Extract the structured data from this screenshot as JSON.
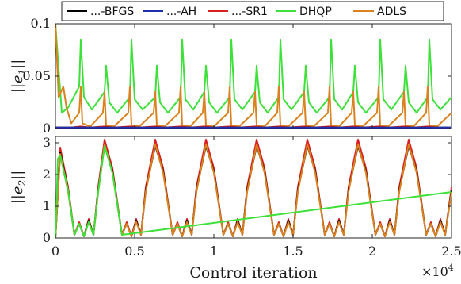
{
  "legend": {
    "entries": [
      {
        "label": "...-BFGS",
        "color": "#000000"
      },
      {
        "label": "...-AH",
        "color": "#1f2fb0"
      },
      {
        "label": "...-SR1",
        "color": "#d92020"
      },
      {
        "label": "DHQP",
        "color": "#3ee03a"
      },
      {
        "label": "ADLS",
        "color": "#d9821f"
      }
    ]
  },
  "x_axis": {
    "label": "Control iteration",
    "multiplier_base": "×10",
    "multiplier_exp": "4",
    "ticks": [
      "0",
      "0.5",
      "1",
      "1.5",
      "2",
      "2.5"
    ]
  },
  "chart_data": [
    {
      "type": "line",
      "panel": "top",
      "ylabel": "||e1||",
      "ylabel_base": "||e",
      "ylabel_sub": "1",
      "ylabel_end": "||",
      "xlim": [
        0,
        25000
      ],
      "ylim": [
        0,
        0.1
      ],
      "yticks": [
        "0",
        "0.05",
        "0.1"
      ],
      "grid": false,
      "series": [
        {
          "name": "DHQP",
          "description": "periodic spikes, period ~3100",
          "x": [
            0,
            400,
            800,
            1500,
            1600,
            1800,
            2300,
            3100,
            3200,
            3400,
            3900,
            4700,
            4800,
            5000,
            5500,
            6300,
            6400,
            6600,
            7100,
            7900,
            8000,
            8200,
            8700,
            9400,
            9500,
            9700,
            10200,
            11000,
            11100,
            11300,
            11800,
            12600,
            12700,
            12900,
            13400,
            14100,
            14200,
            14400,
            14900,
            15700,
            15800,
            16000,
            16500,
            17300,
            17400,
            17600,
            18100,
            18800,
            18900,
            19100,
            19600,
            20400,
            20500,
            20700,
            21200,
            22000,
            22100,
            22300,
            22800,
            23500,
            23600,
            23800,
            24300,
            25000
          ],
          "y": [
            0.1,
            0.015,
            0.02,
            0.04,
            0.085,
            0.03,
            0.018,
            0.035,
            0.06,
            0.025,
            0.015,
            0.03,
            0.085,
            0.028,
            0.018,
            0.03,
            0.06,
            0.025,
            0.015,
            0.03,
            0.085,
            0.028,
            0.018,
            0.035,
            0.06,
            0.025,
            0.015,
            0.03,
            0.085,
            0.028,
            0.018,
            0.035,
            0.06,
            0.025,
            0.015,
            0.03,
            0.085,
            0.028,
            0.018,
            0.035,
            0.06,
            0.025,
            0.015,
            0.03,
            0.085,
            0.028,
            0.018,
            0.035,
            0.06,
            0.025,
            0.015,
            0.03,
            0.085,
            0.028,
            0.018,
            0.035,
            0.06,
            0.025,
            0.015,
            0.03,
            0.085,
            0.028,
            0.018,
            0.03
          ]
        },
        {
          "name": "ADLS",
          "description": "small periodic ramps with spikes",
          "x": [
            0,
            200,
            500,
            700,
            1000,
            1500,
            1600,
            1700,
            2200,
            3000,
            3100,
            3200,
            3700,
            4600,
            4700,
            4800,
            5300,
            6200,
            6300,
            6400,
            6900,
            7800,
            7900,
            8000,
            8500,
            9300,
            9400,
            9500,
            10000,
            10900,
            11000,
            11100,
            11600,
            12500,
            12600,
            12700,
            13200,
            14000,
            14100,
            14200,
            14700,
            15600,
            15700,
            15800,
            16300,
            17200,
            17300,
            17400,
            17900,
            18700,
            18800,
            18900,
            19400,
            20300,
            20400,
            20500,
            21000,
            21900,
            22000,
            22100,
            22600,
            23400,
            23500,
            23600,
            24100,
            25000
          ],
          "y": [
            0.1,
            0.03,
            0.04,
            0.02,
            0.005,
            0.015,
            0.04,
            0.005,
            0.002,
            0.015,
            0.035,
            0.003,
            0.002,
            0.015,
            0.04,
            0.003,
            0.002,
            0.015,
            0.035,
            0.003,
            0.002,
            0.015,
            0.04,
            0.003,
            0.002,
            0.015,
            0.035,
            0.003,
            0.002,
            0.015,
            0.04,
            0.003,
            0.002,
            0.015,
            0.035,
            0.003,
            0.002,
            0.015,
            0.04,
            0.003,
            0.002,
            0.015,
            0.035,
            0.003,
            0.002,
            0.015,
            0.04,
            0.003,
            0.002,
            0.015,
            0.035,
            0.003,
            0.002,
            0.015,
            0.04,
            0.003,
            0.002,
            0.015,
            0.035,
            0.003,
            0.002,
            0.015,
            0.04,
            0.003,
            0.002,
            0.015
          ]
        },
        {
          "name": "...-SR1",
          "x": [
            0,
            1000,
            1600,
            2200,
            3100,
            3700,
            4700,
            5300,
            6300,
            6900,
            7900,
            8500,
            9400,
            10000,
            11000,
            11600,
            12600,
            13200,
            14100,
            14700,
            15700,
            16300,
            17300,
            17900,
            18800,
            19400,
            20400,
            21000,
            22000,
            22600,
            23500,
            24100,
            25000
          ],
          "y": [
            0.001,
            0.001,
            0.002,
            0.001,
            0.002,
            0.001,
            0.002,
            0.001,
            0.002,
            0.001,
            0.002,
            0.001,
            0.002,
            0.001,
            0.002,
            0.001,
            0.002,
            0.001,
            0.002,
            0.001,
            0.002,
            0.001,
            0.002,
            0.001,
            0.002,
            0.001,
            0.002,
            0.001,
            0.002,
            0.001,
            0.002,
            0.001,
            0.001
          ]
        },
        {
          "name": "...-BFGS",
          "x": [
            0,
            25000
          ],
          "y": [
            0.001,
            0.001
          ]
        },
        {
          "name": "...-AH",
          "x": [
            0,
            25000
          ],
          "y": [
            0.001,
            0.001
          ]
        }
      ]
    },
    {
      "type": "line",
      "panel": "bottom",
      "ylabel": "||e2||",
      "ylabel_base": "||e",
      "ylabel_sub": "2",
      "ylabel_end": "||",
      "xlim": [
        0,
        25000
      ],
      "ylim": [
        0,
        3.2
      ],
      "yticks": [
        "0",
        "1",
        "2",
        "3"
      ],
      "grid": false,
      "series": [
        {
          "name": "...-SR1",
          "x": [
            0,
            300,
            800,
            1200,
            1500,
            1800,
            2100,
            2400,
            2700,
            3100,
            3600,
            4200,
            4500,
            4800,
            5100,
            5400,
            5700,
            6300,
            6800,
            7400,
            7700,
            8000,
            8300,
            8600,
            8900,
            9500,
            10000,
            10600,
            10900,
            11200,
            11500,
            11800,
            12100,
            12700,
            13200,
            13800,
            14100,
            14400,
            14700,
            15000,
            15300,
            15900,
            16400,
            17000,
            17300,
            17600,
            17900,
            18200,
            18500,
            19100,
            19600,
            20200,
            20500,
            20800,
            21100,
            21400,
            21700,
            22300,
            22800,
            23400,
            23700,
            24000,
            24300,
            24600,
            25000
          ],
          "y": [
            0,
            2.85,
            1.6,
            0.1,
            0.5,
            0.05,
            0.6,
            0.1,
            1.6,
            3.1,
            2.2,
            0.1,
            0.5,
            0.05,
            0.6,
            0.1,
            1.6,
            3.1,
            2.2,
            0.1,
            0.5,
            0.05,
            0.6,
            0.1,
            1.6,
            3.1,
            2.2,
            0.1,
            0.5,
            0.05,
            0.6,
            0.1,
            1.6,
            3.1,
            2.2,
            0.1,
            0.5,
            0.05,
            0.6,
            0.1,
            1.6,
            3.1,
            2.2,
            0.1,
            0.5,
            0.05,
            0.6,
            0.1,
            1.6,
            3.1,
            2.2,
            0.1,
            0.5,
            0.05,
            0.6,
            0.1,
            1.6,
            3.1,
            2.2,
            0.1,
            0.5,
            0.05,
            0.6,
            0.1,
            1.6
          ]
        },
        {
          "name": "...-BFGS",
          "x": [
            0,
            300,
            800,
            1200,
            1500,
            1800,
            2100,
            2400,
            2700,
            3100,
            3600,
            4200,
            4500,
            4800,
            5100,
            5400,
            5700,
            6300,
            6800,
            7400,
            7700,
            8000,
            8300,
            8600,
            8900,
            9500,
            10000,
            10600,
            10900,
            11200,
            11500,
            11800,
            12100,
            12700,
            13200,
            13800,
            14100,
            14400,
            14700,
            15000,
            15300,
            15900,
            16400,
            17000,
            17300,
            17600,
            17900,
            18200,
            18500,
            19100,
            19600,
            20200,
            20500,
            20800,
            21100,
            21400,
            21700,
            22300,
            22800,
            23400,
            23700,
            24000,
            24300,
            24600,
            25000
          ],
          "y": [
            0,
            2.7,
            1.5,
            0.1,
            0.45,
            0.05,
            0.55,
            0.1,
            1.5,
            2.9,
            2.1,
            0.1,
            0.45,
            0.05,
            0.55,
            0.1,
            1.5,
            2.9,
            2.1,
            0.1,
            0.45,
            0.05,
            0.55,
            0.1,
            1.5,
            2.9,
            2.1,
            0.1,
            0.45,
            0.05,
            0.55,
            0.1,
            1.5,
            2.9,
            2.1,
            0.1,
            0.45,
            0.05,
            0.55,
            0.1,
            1.5,
            2.9,
            2.1,
            0.1,
            0.45,
            0.05,
            0.55,
            0.1,
            1.5,
            2.9,
            2.1,
            0.1,
            0.45,
            0.05,
            0.55,
            0.1,
            1.5,
            2.9,
            2.1,
            0.1,
            0.45,
            0.05,
            0.55,
            0.1,
            1.5
          ]
        },
        {
          "name": "ADLS",
          "x": [
            0,
            300,
            800,
            1200,
            1500,
            1800,
            2100,
            2400,
            2700,
            3100,
            3600,
            4200,
            4500,
            4800,
            5100,
            5400,
            5700,
            6300,
            6800,
            7400,
            7700,
            8000,
            8300,
            8600,
            8900,
            9500,
            10000,
            10600,
            10900,
            11200,
            11500,
            11800,
            12100,
            12700,
            13200,
            13800,
            14100,
            14400,
            14700,
            15000,
            15300,
            15900,
            16400,
            17000,
            17300,
            17600,
            17900,
            18200,
            18500,
            19100,
            19600,
            20200,
            20500,
            20800,
            21100,
            21400,
            21700,
            22300,
            22800,
            23400,
            23700,
            24000,
            24300,
            24600,
            25000
          ],
          "y": [
            0,
            2.65,
            1.45,
            0.1,
            0.45,
            0.05,
            0.5,
            0.1,
            1.45,
            2.95,
            2.05,
            0.1,
            0.45,
            0.05,
            0.5,
            0.1,
            1.45,
            2.95,
            2.05,
            0.1,
            0.45,
            0.05,
            0.5,
            0.1,
            1.45,
            2.95,
            2.05,
            0.1,
            0.45,
            0.05,
            0.5,
            0.1,
            1.45,
            2.95,
            2.05,
            0.1,
            0.45,
            0.05,
            0.5,
            0.1,
            1.45,
            2.95,
            2.05,
            0.1,
            0.45,
            0.05,
            0.5,
            0.1,
            1.45,
            2.95,
            2.05,
            0.1,
            0.45,
            0.05,
            0.5,
            0.1,
            1.45,
            2.95,
            2.05,
            0.1,
            0.45,
            0.05,
            0.5,
            0.1,
            1.45
          ]
        },
        {
          "name": "DHQP",
          "x": [
            0,
            150,
            300,
            800,
            1200,
            1500,
            1800,
            2100,
            2400,
            2700,
            3100,
            3600,
            4200,
            25000
          ],
          "y": [
            0,
            2.5,
            2.6,
            1.5,
            0.1,
            0.45,
            0.05,
            0.5,
            0.1,
            1.45,
            2.9,
            2.05,
            0.1,
            1.45
          ]
        }
      ]
    }
  ]
}
